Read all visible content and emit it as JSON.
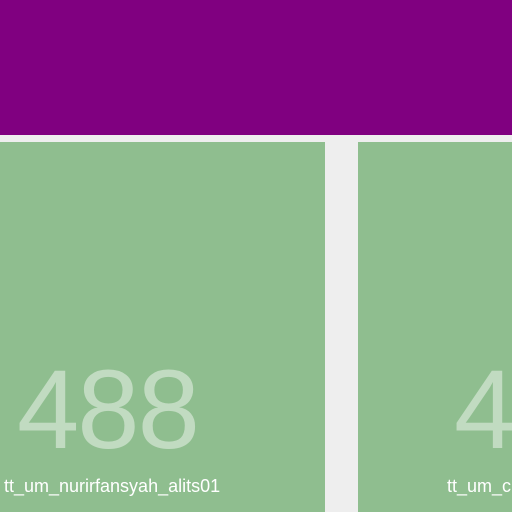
{
  "colors": {
    "header": "#800080",
    "tile": "#8fbe8f",
    "background": "#eeeeee"
  },
  "tiles": [
    {
      "count": "488",
      "label": "tt_um_nurirfansyah_alits01"
    },
    {
      "count": "4",
      "label": "tt_um_c"
    }
  ]
}
